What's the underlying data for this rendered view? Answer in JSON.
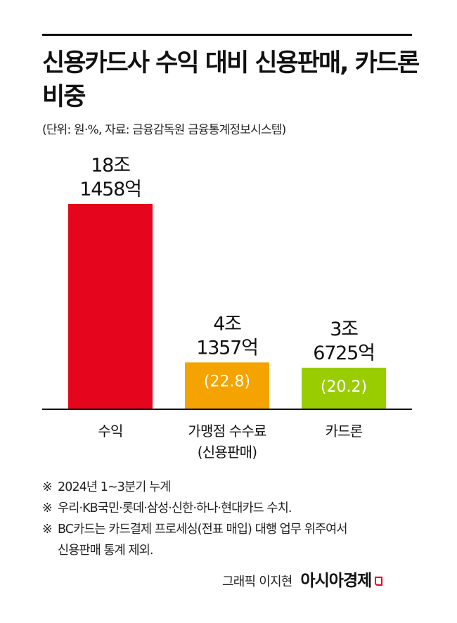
{
  "header": {
    "title": "신용카드사 수익 대비 신용판매, 카드론 비중",
    "source": "(단위: 원·%, 자료: 금융감독원 금융통계정보시스템)"
  },
  "chart_data": {
    "type": "bar",
    "units": "원·%",
    "categories": [
      [
        "수익"
      ],
      [
        "가맹점 수수료",
        "(신용판매)"
      ],
      [
        "카드론"
      ]
    ],
    "values": [
      181458,
      41357,
      36725
    ],
    "value_unit": "억원",
    "value_labels": [
      [
        "18조",
        "1458억"
      ],
      [
        "4조",
        "1357억"
      ],
      [
        "3조",
        "6725억"
      ]
    ],
    "share_labels": [
      null,
      "(22.8)",
      "(20.2)"
    ],
    "share_percent": [
      null,
      22.8,
      20.2
    ],
    "colors": [
      "#e5061d",
      "#f5a300",
      "#9acd00"
    ],
    "axis_color": "#111111",
    "ylim": [
      0,
      181458
    ],
    "grid": false,
    "legend": "none"
  },
  "notes": {
    "mark": "※",
    "items": [
      "2024년 1~3분기 누계",
      "우리·KB국민·롯데·삼성·신한·하나·현대카드 수치.",
      "BC카드는 카드결제 프로세싱(전표 매입) 대행 업무 위주여서\n신용판매 통계 제외."
    ]
  },
  "credit": {
    "graphic": "그래픽 이지현",
    "brand": "아시아경제"
  }
}
